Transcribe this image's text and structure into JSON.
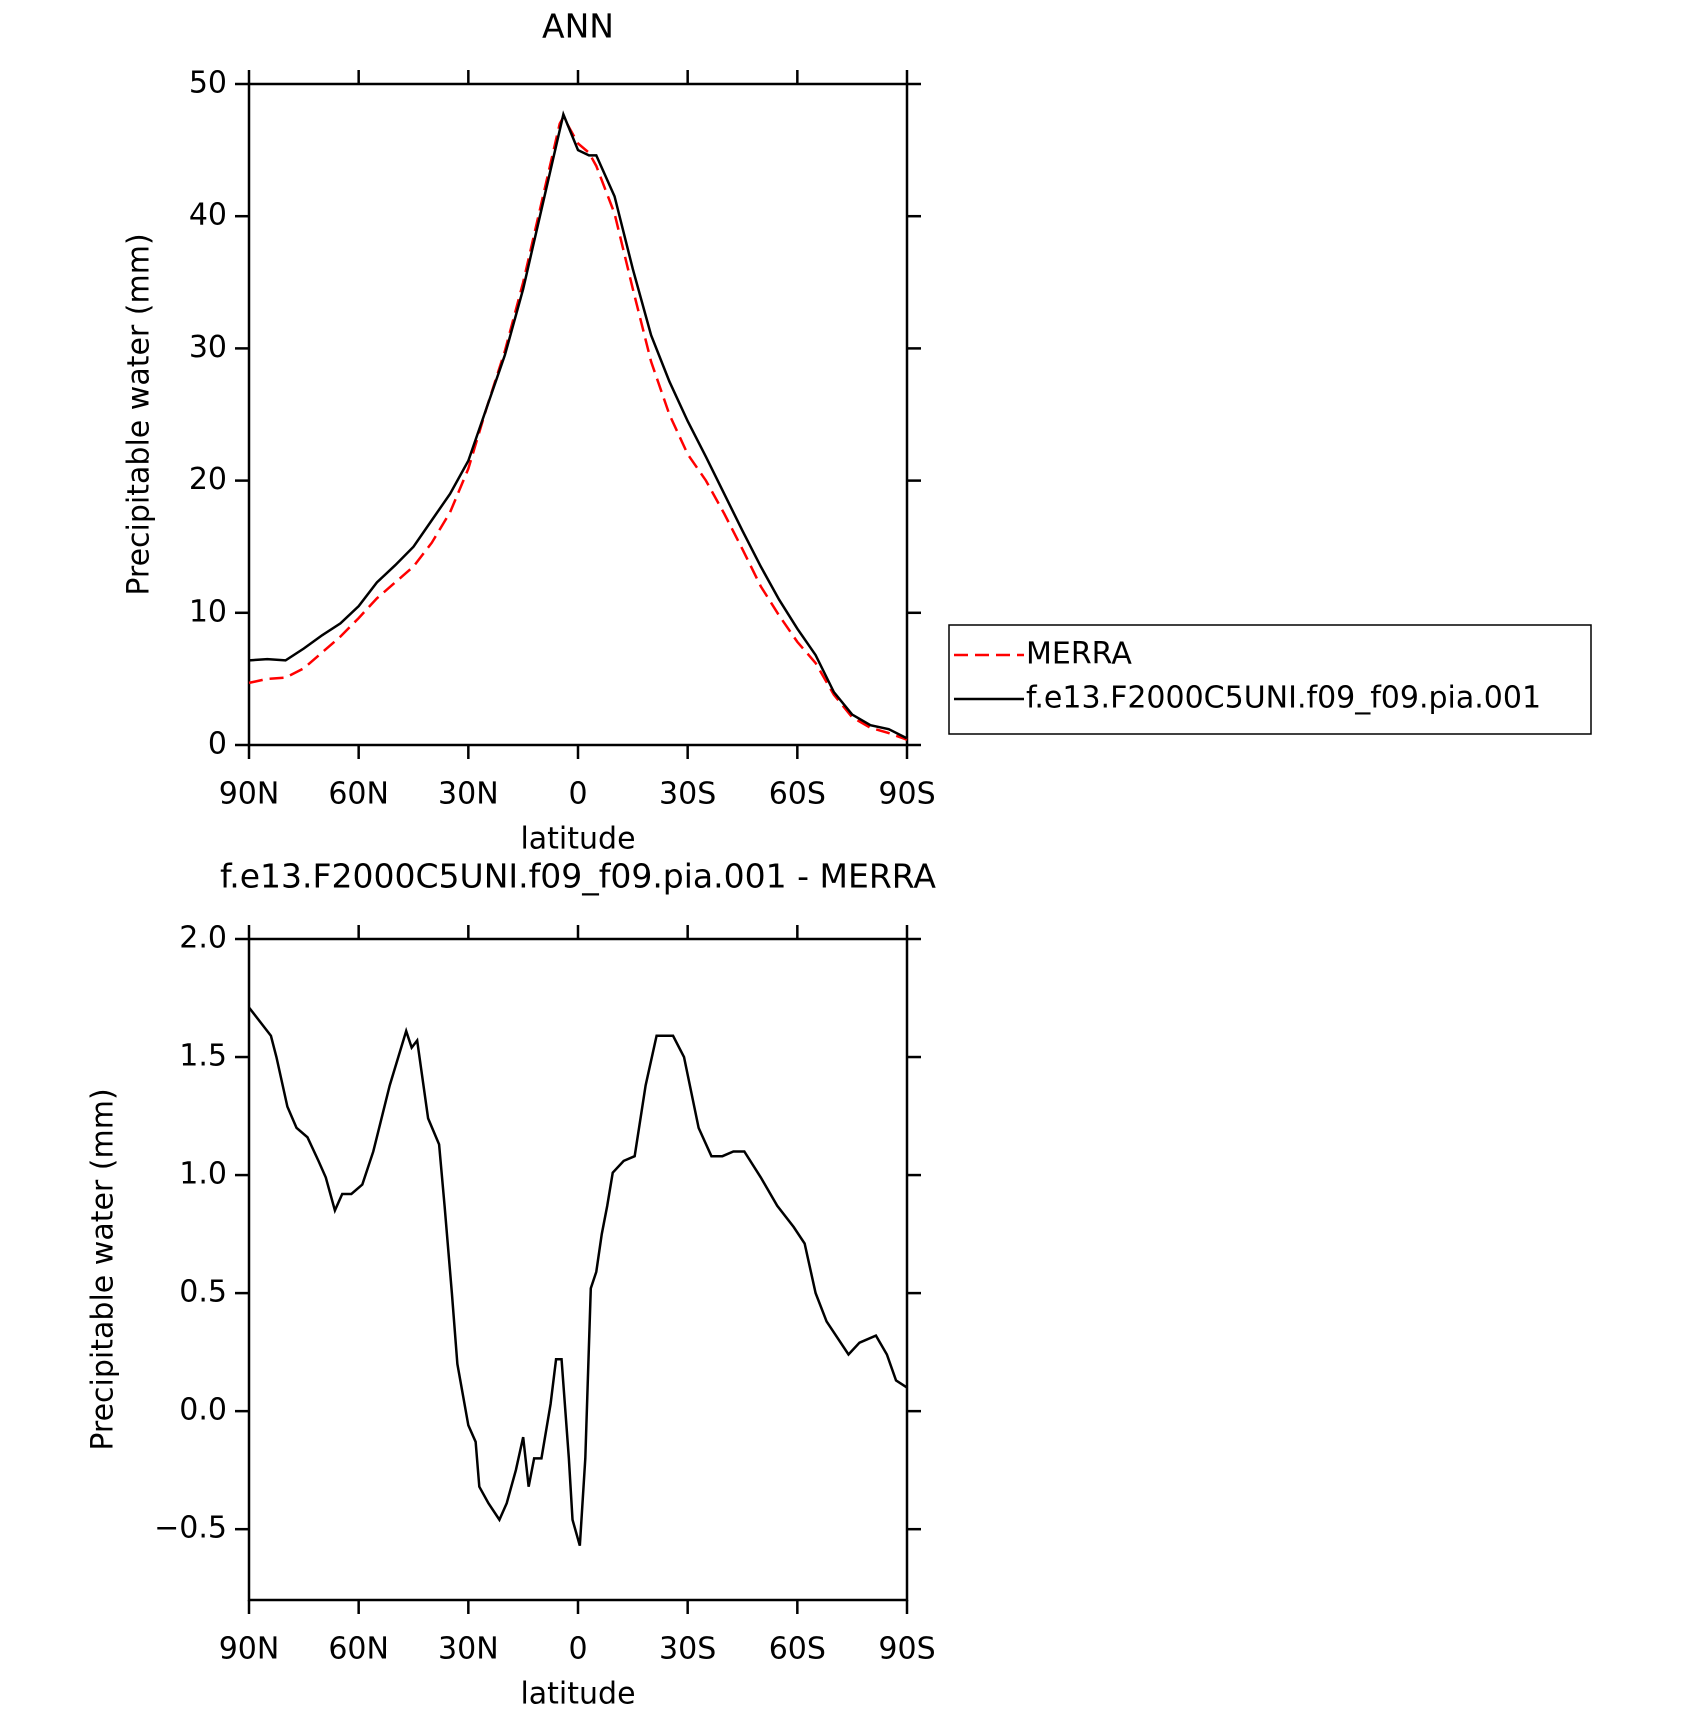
{
  "chart_data": [
    {
      "type": "line",
      "title": "ANN",
      "x_label": "latitude",
      "y_label": "Precipitable water (mm)",
      "x": [
        90,
        85,
        80,
        75,
        70,
        65,
        60,
        55,
        50,
        45,
        40,
        35,
        30,
        25,
        20,
        15,
        10,
        5,
        4,
        0,
        -3,
        -5,
        -10,
        -15,
        -20,
        -25,
        -30,
        -35,
        -40,
        -45,
        -50,
        -55,
        -60,
        -65,
        -70,
        -75,
        -80,
        -85,
        -90
      ],
      "series": [
        {
          "name": "MERRA",
          "color": "#ff0000",
          "line_style": "dashed",
          "values": [
            4.7,
            5.0,
            5.1,
            5.8,
            7.0,
            8.2,
            9.6,
            11.1,
            12.3,
            13.5,
            15.3,
            17.6,
            20.9,
            25.5,
            29.8,
            35.0,
            41.0,
            47.0,
            47.5,
            45.5,
            44.8,
            43.8,
            40.2,
            34.5,
            29.0,
            25.0,
            22.0,
            20.0,
            17.5,
            14.8,
            12.0,
            9.8,
            7.8,
            6.2,
            3.8,
            2.1,
            1.3,
            0.9,
            0.4
          ]
        },
        {
          "name": "f.e13.F2000C5UNI.f09_f09.pia.001",
          "color": "#000000",
          "line_style": "solid",
          "values": [
            6.4,
            6.5,
            6.4,
            7.3,
            8.3,
            9.2,
            10.5,
            12.3,
            13.6,
            15.0,
            17.0,
            19.0,
            21.5,
            25.5,
            29.5,
            34.5,
            40.5,
            46.5,
            47.7,
            45.0,
            44.6,
            44.6,
            41.5,
            36.0,
            31.0,
            27.5,
            24.5,
            21.8,
            19.0,
            16.2,
            13.5,
            11.0,
            8.8,
            6.8,
            4.0,
            2.3,
            1.5,
            1.2,
            0.5
          ]
        }
      ],
      "xlim": [
        90,
        -90
      ],
      "xticks": [
        {
          "value": 90,
          "label": "90N"
        },
        {
          "value": 60,
          "label": "60N"
        },
        {
          "value": 30,
          "label": "30N"
        },
        0,
        {
          "value": -30,
          "label": "30S"
        },
        {
          "value": -60,
          "label": "60S"
        },
        {
          "value": -90,
          "label": "90S"
        }
      ],
      "ylim": [
        0,
        50
      ],
      "yticks": [
        0,
        10,
        20,
        30,
        40,
        50
      ],
      "legend": "right"
    },
    {
      "type": "line",
      "title": "f.e13.F2000C5UNI.f09_f09.pia.001 - MERRA",
      "x_label": "latitude",
      "y_label": "Precipitable water (mm)",
      "x": [
        90,
        84,
        82.5,
        79.5,
        77,
        74,
        71,
        69,
        66.5,
        64.5,
        62,
        59,
        56,
        51.5,
        47,
        45.5,
        44,
        41,
        38,
        36.5,
        34.5,
        33,
        30,
        28,
        27,
        24.5,
        21.5,
        19.5,
        17,
        15,
        13.5,
        12,
        10,
        7.5,
        6,
        4.5,
        2.5,
        1.5,
        -0.5,
        -2,
        -3.5,
        -5,
        -6.5,
        -8,
        -9.5,
        -12.5,
        -15.5,
        -18.5,
        -21.5,
        -23,
        -26,
        -29,
        -33,
        -36.5,
        -39.5,
        -42.5,
        -45.5,
        -50,
        -54.5,
        -59,
        -62,
        -65,
        -68,
        -71,
        -74,
        -77,
        -81.5,
        -84.5,
        -87,
        -90
      ],
      "series": [
        {
          "color": "#000000",
          "line_style": "solid",
          "values": [
            1.71,
            1.59,
            1.5,
            1.29,
            1.2,
            1.16,
            1.06,
            0.99,
            0.85,
            0.92,
            0.92,
            0.96,
            1.1,
            1.38,
            1.61,
            1.54,
            1.57,
            1.24,
            1.13,
            0.87,
            0.5,
            0.2,
            -0.06,
            -0.13,
            -0.32,
            -0.39,
            -0.46,
            -0.39,
            -0.25,
            -0.11,
            -0.32,
            -0.2,
            -0.2,
            0.03,
            0.22,
            0.22,
            -0.2,
            -0.46,
            -0.57,
            -0.2,
            0.52,
            0.59,
            0.75,
            0.87,
            1.01,
            1.06,
            1.08,
            1.38,
            1.59,
            1.59,
            1.59,
            1.5,
            1.2,
            1.08,
            1.08,
            1.1,
            1.1,
            0.99,
            0.87,
            0.78,
            0.71,
            0.5,
            0.38,
            0.31,
            0.24,
            0.29,
            0.32,
            0.24,
            0.13,
            0.1
          ]
        }
      ],
      "xlim": [
        90,
        -90
      ],
      "xticks": [
        {
          "value": 90,
          "label": "90N"
        },
        {
          "value": 60,
          "label": "60N"
        },
        {
          "value": 30,
          "label": "30N"
        },
        0,
        {
          "value": -30,
          "label": "30S"
        },
        {
          "value": -60,
          "label": "60S"
        },
        {
          "value": -90,
          "label": "90S"
        }
      ],
      "ylim": [
        -0.8,
        2.0
      ],
      "yticks": [
        {
          "value": -0.5,
          "label": "−0.5"
        },
        {
          "value": 0,
          "label": "0.0"
        },
        0.5,
        {
          "value": 1.0,
          "label": "1.0"
        },
        1.5,
        {
          "value": 2.0,
          "label": "2.0"
        }
      ]
    }
  ]
}
